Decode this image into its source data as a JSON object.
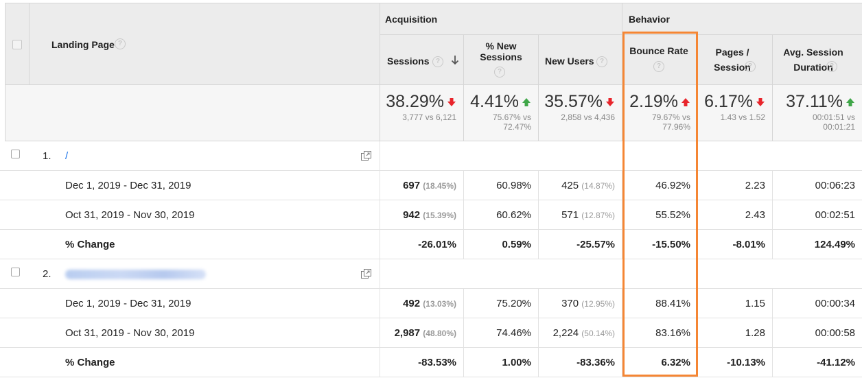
{
  "header": {
    "landing_page_label": "Landing Page",
    "acquisition_label": "Acquisition",
    "behavior_label": "Behavior",
    "columns": [
      {
        "key": "sessions",
        "label": "Sessions"
      },
      {
        "key": "new_sessions",
        "label": "% New\nSessions"
      },
      {
        "key": "new_users",
        "label": "New Users"
      },
      {
        "key": "bounce_rate",
        "label": "Bounce Rate"
      },
      {
        "key": "pages_session",
        "label": "Pages /\nSession"
      },
      {
        "key": "avg_duration",
        "label": "Avg. Session\nDuration"
      }
    ],
    "help_glyph": "?",
    "sort_icon": "arrow-down-icon"
  },
  "summary": [
    {
      "value": "38.29%",
      "direction": "down",
      "compare": "3,777 vs 6,121"
    },
    {
      "value": "4.41%",
      "direction": "up",
      "compare": "75.67% vs\n72.47%"
    },
    {
      "value": "35.57%",
      "direction": "down",
      "compare": "2,858 vs 4,436"
    },
    {
      "value": "2.19%",
      "direction": "up-red",
      "compare": "79.67% vs\n77.96%"
    },
    {
      "value": "6.17%",
      "direction": "down",
      "compare": "1.43 vs 1.52"
    },
    {
      "value": "37.11%",
      "direction": "up",
      "compare": "00:01:51 vs\n00:01:21"
    }
  ],
  "colors": {
    "arrow_red": "#e8242b",
    "arrow_green": "#3fa648",
    "highlight": "#f58634",
    "link": "#1a73e8"
  },
  "rows": [
    {
      "index": "1.",
      "page": "/",
      "page_blurred": false,
      "periods": [
        {
          "label": "Dec 1, 2019 - Dec 31, 2019",
          "sessions": "697",
          "sessions_pct": "(18.45%)",
          "new_sessions": "60.98%",
          "new_users": "425",
          "new_users_pct": "(14.87%)",
          "bounce_rate": "46.92%",
          "pages_session": "2.23",
          "avg_duration": "00:06:23"
        },
        {
          "label": "Oct 31, 2019 - Nov 30, 2019",
          "sessions": "942",
          "sessions_pct": "(15.39%)",
          "new_sessions": "60.62%",
          "new_users": "571",
          "new_users_pct": "(12.87%)",
          "bounce_rate": "55.52%",
          "pages_session": "2.43",
          "avg_duration": "00:02:51"
        }
      ],
      "change": {
        "label": "% Change",
        "sessions": "-26.01%",
        "new_sessions": "0.59%",
        "new_users": "-25.57%",
        "bounce_rate": "-15.50%",
        "pages_session": "-8.01%",
        "avg_duration": "124.49%"
      }
    },
    {
      "index": "2.",
      "page": "",
      "page_blurred": true,
      "periods": [
        {
          "label": "Dec 1, 2019 - Dec 31, 2019",
          "sessions": "492",
          "sessions_pct": "(13.03%)",
          "new_sessions": "75.20%",
          "new_users": "370",
          "new_users_pct": "(12.95%)",
          "bounce_rate": "88.41%",
          "pages_session": "1.15",
          "avg_duration": "00:00:34"
        },
        {
          "label": "Oct 31, 2019 - Nov 30, 2019",
          "sessions": "2,987",
          "sessions_pct": "(48.80%)",
          "new_sessions": "74.46%",
          "new_users": "2,224",
          "new_users_pct": "(50.14%)",
          "bounce_rate": "83.16%",
          "pages_session": "1.28",
          "avg_duration": "00:00:58"
        }
      ],
      "change": {
        "label": "% Change",
        "sessions": "-83.53%",
        "new_sessions": "1.00%",
        "new_users": "-83.36%",
        "bounce_rate": "6.32%",
        "pages_session": "-10.13%",
        "avg_duration": "-41.12%"
      }
    }
  ]
}
